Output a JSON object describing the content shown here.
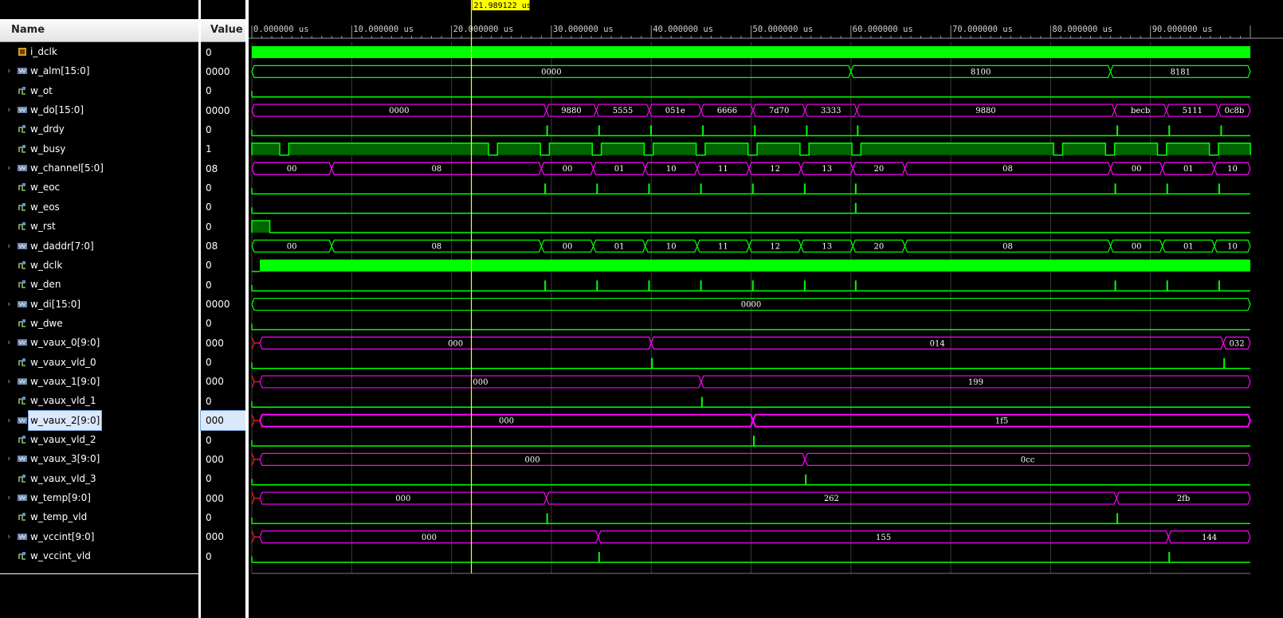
{
  "columns": {
    "name": "Name",
    "value": "Value"
  },
  "cursor": {
    "label": "21.989122 us",
    "time": 21.989122
  },
  "timeline": {
    "unit": "us",
    "start": 0,
    "end": 100,
    "ticks": [
      "0.000000 us",
      "10.000000 us",
      "20.000000 us",
      "30.000000 us",
      "40.000000 us",
      "50.000000 us",
      "60.000000 us",
      "70.000000 us",
      "80.000000 us",
      "90.000000 us"
    ]
  },
  "colors": {
    "bit": "#00ff00",
    "bus_green": "#00ff00",
    "bus_magenta": "#ff00ff",
    "cursor": "#ffff00",
    "grid": "#3a3a3a"
  },
  "signals": [
    {
      "name": "i_dclk",
      "value": "0",
      "type": "clock",
      "expandable": false
    },
    {
      "name": "w_alm[15:0]",
      "value": "0000",
      "type": "bus",
      "expandable": true,
      "color": "green",
      "segs": [
        {
          "t": [
            0,
            60
          ],
          "v": "0000"
        },
        {
          "t": [
            60,
            86
          ],
          "v": "8100"
        },
        {
          "t": [
            86,
            100
          ],
          "v": "8181"
        }
      ]
    },
    {
      "name": "w_ot",
      "value": "0",
      "type": "bit",
      "expandable": false,
      "pulses": []
    },
    {
      "name": "w_do[15:0]",
      "value": "0000",
      "type": "bus",
      "expandable": true,
      "color": "magenta",
      "segs": [
        {
          "t": [
            0,
            29.5
          ],
          "v": "0000"
        },
        {
          "t": [
            29.5,
            34.5
          ],
          "v": "9880"
        },
        {
          "t": [
            34.5,
            39.8
          ],
          "v": "5555"
        },
        {
          "t": [
            39.8,
            45
          ],
          "v": "051e"
        },
        {
          "t": [
            45,
            50.2
          ],
          "v": "6666"
        },
        {
          "t": [
            50.2,
            55.4
          ],
          "v": "7d70"
        },
        {
          "t": [
            55.4,
            60.6
          ],
          "v": "3333"
        },
        {
          "t": [
            60.6,
            86.4
          ],
          "v": "9880"
        },
        {
          "t": [
            86.4,
            91.6
          ],
          "v": "becb"
        },
        {
          "t": [
            91.6,
            96.8
          ],
          "v": "5111"
        },
        {
          "t": [
            96.8,
            100
          ],
          "v": "0c8b"
        }
      ]
    },
    {
      "name": "w_drdy",
      "value": "0",
      "type": "bit",
      "expandable": false,
      "pulses": [
        29.5,
        34.7,
        39.9,
        45.1,
        50.3,
        55.5,
        60.6,
        86.6,
        91.8,
        97
      ]
    },
    {
      "name": "w_busy",
      "value": "1",
      "type": "busy",
      "expandable": false,
      "high": [
        [
          0,
          2.8
        ],
        [
          3.7,
          23.7
        ],
        [
          24.6,
          28.9
        ],
        [
          29.8,
          34.1
        ],
        [
          35,
          39.3
        ],
        [
          40.2,
          44.5
        ],
        [
          45.4,
          49.7
        ],
        [
          50.6,
          54.9
        ],
        [
          55.8,
          60.1
        ],
        [
          61,
          80.3
        ],
        [
          81.2,
          85.5
        ],
        [
          86.4,
          90.7
        ],
        [
          91.6,
          95.9
        ],
        [
          96.8,
          100
        ]
      ]
    },
    {
      "name": "w_channel[5:0]",
      "value": "08",
      "type": "bus",
      "expandable": true,
      "color": "magenta",
      "segs": [
        {
          "t": [
            0,
            8
          ],
          "v": "00"
        },
        {
          "t": [
            8,
            29
          ],
          "v": "08"
        },
        {
          "t": [
            29,
            34.2
          ],
          "v": "00"
        },
        {
          "t": [
            34.2,
            39.4
          ],
          "v": "01"
        },
        {
          "t": [
            39.4,
            44.6
          ],
          "v": "10"
        },
        {
          "t": [
            44.6,
            49.8
          ],
          "v": "11"
        },
        {
          "t": [
            49.8,
            55
          ],
          "v": "12"
        },
        {
          "t": [
            55,
            60.2
          ],
          "v": "13"
        },
        {
          "t": [
            60.2,
            65.4
          ],
          "v": "20"
        },
        {
          "t": [
            65.4,
            86
          ],
          "v": "08"
        },
        {
          "t": [
            86,
            91.2
          ],
          "v": "00"
        },
        {
          "t": [
            91.2,
            96.4
          ],
          "v": "01"
        },
        {
          "t": [
            96.4,
            100
          ],
          "v": "10"
        }
      ]
    },
    {
      "name": "w_eoc",
      "value": "0",
      "type": "bit",
      "expandable": false,
      "pulses": [
        29.3,
        34.5,
        39.7,
        44.9,
        50.1,
        55.3,
        60.4,
        86.4,
        91.6,
        96.8
      ]
    },
    {
      "name": "w_eos",
      "value": "0",
      "type": "bit",
      "expandable": false,
      "pulses": [
        60.4
      ]
    },
    {
      "name": "w_rst",
      "value": "0",
      "type": "rst",
      "expandable": false,
      "high": [
        [
          0,
          1.8
        ]
      ]
    },
    {
      "name": "w_daddr[7:0]",
      "value": "08",
      "type": "bus",
      "expandable": true,
      "color": "green",
      "segs": [
        {
          "t": [
            0,
            8
          ],
          "v": "00"
        },
        {
          "t": [
            8,
            29
          ],
          "v": "08"
        },
        {
          "t": [
            29,
            34.2
          ],
          "v": "00"
        },
        {
          "t": [
            34.2,
            39.4
          ],
          "v": "01"
        },
        {
          "t": [
            39.4,
            44.6
          ],
          "v": "10"
        },
        {
          "t": [
            44.6,
            49.8
          ],
          "v": "11"
        },
        {
          "t": [
            49.8,
            55
          ],
          "v": "12"
        },
        {
          "t": [
            55,
            60.2
          ],
          "v": "13"
        },
        {
          "t": [
            60.2,
            65.4
          ],
          "v": "20"
        },
        {
          "t": [
            65.4,
            86
          ],
          "v": "08"
        },
        {
          "t": [
            86,
            91.2
          ],
          "v": "00"
        },
        {
          "t": [
            91.2,
            96.4
          ],
          "v": "01"
        },
        {
          "t": [
            96.4,
            100
          ],
          "v": "10"
        }
      ]
    },
    {
      "name": "w_dclk",
      "value": "0",
      "type": "clock",
      "expandable": false,
      "start": 0.8
    },
    {
      "name": "w_den",
      "value": "0",
      "type": "bit",
      "expandable": false,
      "pulses": [
        29.3,
        34.5,
        39.7,
        44.9,
        50.1,
        55.3,
        60.4,
        86.4,
        91.6,
        96.8
      ]
    },
    {
      "name": "w_di[15:0]",
      "value": "0000",
      "type": "bus",
      "expandable": true,
      "color": "green",
      "segs": [
        {
          "t": [
            0,
            100
          ],
          "v": "0000"
        }
      ]
    },
    {
      "name": "w_dwe",
      "value": "0",
      "type": "bit",
      "expandable": false,
      "pulses": []
    },
    {
      "name": "w_vaux_0[9:0]",
      "value": "000",
      "type": "bus",
      "expandable": true,
      "color": "magenta",
      "segs": [
        {
          "t": [
            0.8,
            40
          ],
          "v": "000"
        },
        {
          "t": [
            40,
            97.3
          ],
          "v": "014"
        },
        {
          "t": [
            97.3,
            100
          ],
          "v": "032"
        }
      ]
    },
    {
      "name": "w_vaux_vld_0",
      "value": "0",
      "type": "bit",
      "expandable": false,
      "pulses": [
        40,
        97.3
      ]
    },
    {
      "name": "w_vaux_1[9:0]",
      "value": "000",
      "type": "bus",
      "expandable": true,
      "color": "magenta",
      "segs": [
        {
          "t": [
            0.8,
            45
          ],
          "v": "000"
        },
        {
          "t": [
            45,
            100
          ],
          "v": "199"
        }
      ]
    },
    {
      "name": "w_vaux_vld_1",
      "value": "0",
      "type": "bit",
      "expandable": false,
      "pulses": [
        45
      ]
    },
    {
      "name": "w_vaux_2[9:0]",
      "value": "000",
      "type": "bus",
      "expandable": true,
      "color": "magenta",
      "selected": true,
      "segs": [
        {
          "t": [
            0.8,
            50.2
          ],
          "v": "000"
        },
        {
          "t": [
            50.2,
            100
          ],
          "v": "1f5"
        }
      ]
    },
    {
      "name": "w_vaux_vld_2",
      "value": "0",
      "type": "bit",
      "expandable": false,
      "pulses": [
        50.2
      ]
    },
    {
      "name": "w_vaux_3[9:0]",
      "value": "000",
      "type": "bus",
      "expandable": true,
      "color": "magenta",
      "segs": [
        {
          "t": [
            0.8,
            55.4
          ],
          "v": "000"
        },
        {
          "t": [
            55.4,
            100
          ],
          "v": "0cc"
        }
      ]
    },
    {
      "name": "w_vaux_vld_3",
      "value": "0",
      "type": "bit",
      "expandable": false,
      "pulses": [
        55.4
      ]
    },
    {
      "name": "w_temp[9:0]",
      "value": "000",
      "type": "bus",
      "expandable": true,
      "color": "magenta",
      "segs": [
        {
          "t": [
            0.8,
            29.5
          ],
          "v": "000"
        },
        {
          "t": [
            29.5,
            86.6
          ],
          "v": "262"
        },
        {
          "t": [
            86.6,
            100
          ],
          "v": "2fb"
        }
      ]
    },
    {
      "name": "w_temp_vld",
      "value": "0",
      "type": "bit",
      "expandable": false,
      "pulses": [
        29.5,
        86.6
      ]
    },
    {
      "name": "w_vccint[9:0]",
      "value": "000",
      "type": "bus",
      "expandable": true,
      "color": "magenta",
      "segs": [
        {
          "t": [
            0.8,
            34.7
          ],
          "v": "000"
        },
        {
          "t": [
            34.7,
            91.8
          ],
          "v": "155"
        },
        {
          "t": [
            91.8,
            100
          ],
          "v": "144"
        }
      ]
    },
    {
      "name": "w_vccint_vld",
      "value": "0",
      "type": "bit",
      "expandable": false,
      "pulses": [
        34.7,
        91.8
      ]
    }
  ]
}
